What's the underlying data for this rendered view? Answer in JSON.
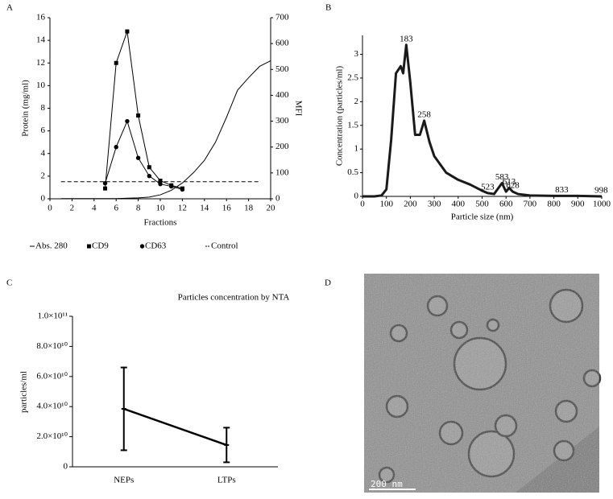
{
  "panel_labels": [
    "A",
    "B",
    "C",
    "D"
  ],
  "chart_data": [
    {
      "type": "line",
      "x_label": "Fractions",
      "y_label": "Protein (mg/ml)",
      "y2_label": "MFI",
      "x": [
        1,
        2,
        3,
        4,
        5,
        6,
        7,
        8,
        9,
        10,
        11,
        12,
        13,
        14,
        15,
        16,
        17,
        18,
        19,
        20
      ],
      "xlim": [
        0,
        20
      ],
      "xticks": [
        0,
        2,
        4,
        6,
        8,
        10,
        12,
        14,
        16,
        18,
        20
      ],
      "ylim": [
        0,
        16
      ],
      "yticks": [
        0,
        2,
        4,
        6,
        8,
        10,
        12,
        14,
        16
      ],
      "y2lim": [
        0,
        700
      ],
      "y2ticks": [
        0,
        100,
        200,
        300,
        400,
        500,
        600,
        700
      ],
      "series": [
        {
          "name": "Abs. 280",
          "color": "#000000",
          "marker": "none",
          "dash": "solid",
          "values": [
            0.02,
            0.02,
            0.02,
            0.02,
            0.02,
            0.02,
            0.05,
            0.08,
            0.15,
            0.35,
            0.75,
            1.4,
            2.3,
            3.4,
            5.0,
            7.2,
            9.6,
            10.7,
            11.7,
            12.2
          ]
        },
        {
          "name": "CD9",
          "color": "#000000",
          "marker": "square",
          "dash": "solid",
          "axis": "y2",
          "values": [
            null,
            null,
            null,
            null,
            40,
            525,
            647,
            322,
            122,
            70,
            52,
            40,
            null,
            null,
            null,
            null,
            null,
            null,
            null,
            null
          ]
        },
        {
          "name": "CD63",
          "color": "#000000",
          "marker": "circle",
          "dash": "solid",
          "axis": "y2",
          "values": [
            null,
            null,
            null,
            null,
            60,
            200,
            300,
            158,
            88,
            57,
            48,
            36,
            null,
            null,
            null,
            null,
            null,
            null,
            null,
            null
          ]
        },
        {
          "name": "Control",
          "color": "#000000",
          "marker": "none",
          "dash": "dashed",
          "axis": "y2",
          "values": [
            66,
            66,
            66,
            66,
            66,
            66,
            66,
            66,
            66,
            66,
            66,
            66,
            66,
            66,
            66,
            66,
            66,
            66,
            66,
            null
          ]
        }
      ]
    },
    {
      "type": "area",
      "x_label": "Particle size (nm)",
      "y_label": "Concentration (particles/ml)",
      "color": "#1a1a1a",
      "x": [
        0,
        50,
        80,
        100,
        120,
        140,
        160,
        170,
        183,
        200,
        220,
        240,
        258,
        280,
        300,
        350,
        400,
        450,
        500,
        523,
        550,
        583,
        600,
        613,
        628,
        650,
        700,
        800,
        833,
        900,
        998,
        1000
      ],
      "values": [
        0,
        0,
        0.02,
        0.15,
        1.2,
        2.6,
        2.75,
        2.6,
        3.2,
        2.4,
        1.3,
        1.3,
        1.6,
        1.15,
        0.85,
        0.5,
        0.35,
        0.25,
        0.12,
        0.07,
        0.05,
        0.28,
        0.1,
        0.18,
        0.1,
        0.05,
        0.02,
        0.01,
        0.01,
        0.01,
        0,
        0
      ],
      "xlim": [
        0,
        1000
      ],
      "xticks": [
        0,
        100,
        200,
        300,
        400,
        500,
        600,
        700,
        800,
        900,
        1000
      ],
      "ylim": [
        0,
        3.4
      ],
      "yticks": [
        0,
        0.5,
        1.0,
        1.5,
        2.0,
        2.5,
        3.0
      ],
      "peak_labels": [
        183,
        258,
        523,
        583,
        613,
        628,
        833,
        998
      ]
    },
    {
      "type": "errorline",
      "title": "Particles concentration by NTA",
      "y_label": "particles/ml",
      "color": "#000000",
      "categories": [
        "NEPs",
        "LTPs"
      ],
      "values": [
        38500000000,
        14500000000
      ],
      "errors": [
        27500000000,
        11500000000
      ],
      "ylim": [
        0,
        100000000000
      ],
      "yticks": [
        0,
        {
          "value": 20000000000,
          "label": "2.0×10¹⁰"
        },
        {
          "value": 40000000000,
          "label": "4.0×10¹⁰"
        },
        {
          "value": 60000000000,
          "label": "6.0×10¹⁰"
        },
        {
          "value": 80000000000,
          "label": "8.0×10¹⁰"
        },
        {
          "value": 100000000000,
          "label": "1.0×10¹¹"
        }
      ]
    }
  ],
  "micrograph": {
    "scale_bar": "200 nm"
  }
}
